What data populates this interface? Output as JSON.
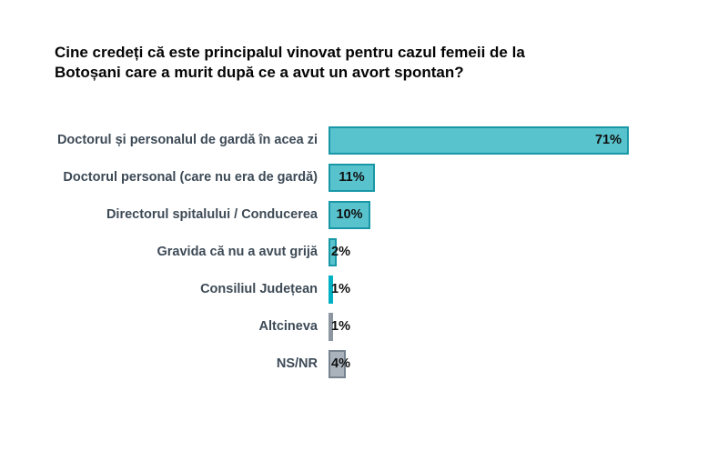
{
  "title": {
    "line1": "Cine credeți că este principalul vinovat pentru cazul femeii de la",
    "line2": "Botoșani care a murit după ce a avut un avort spontan?"
  },
  "colors": {
    "teal_fill": "#58c3cd",
    "teal_border": "#1897a6",
    "cyan_solid": "#00b1c3",
    "gray_solid": "#8d97a2",
    "gray_fill": "#aab3bc",
    "gray_border": "#77838f",
    "category_text": "#3d4a56",
    "value_text": "#101010",
    "title_text": "#050505",
    "background": "#ffffff"
  },
  "chart_data": {
    "type": "bar",
    "orientation": "horizontal",
    "value_unit": "%",
    "title": "Cine credeți că este principalul vinovat pentru cazul femeii de la Botoșani care a murit după ce a avut un avort spontan?",
    "grid": false,
    "legend": false,
    "axis_scale_max": 71,
    "categories": [
      "Doctorul și personalul de gardă în acea zi",
      "Doctorul personal (care nu era de gardă)",
      "Directorul spitalului / Conducerea",
      "Gravida că nu a avut grijă",
      "Consiliul Județean",
      "Altcineva",
      "NS/NR"
    ],
    "values": [
      71,
      11,
      10,
      2,
      1,
      1,
      4
    ],
    "bars": [
      {
        "label": "Doctorul și personalul de gardă în acea zi",
        "value": 71,
        "display": "71%",
        "fill": "#58c3cd",
        "border": "#1897a6",
        "label_pos": "inside-right"
      },
      {
        "label": "Doctorul personal (care nu era de gardă)",
        "value": 11,
        "display": "11%",
        "fill": "#58c3cd",
        "border": "#1897a6",
        "label_pos": "inside-center"
      },
      {
        "label": "Directorul spitalului / Conducerea",
        "value": 10,
        "display": "10%",
        "fill": "#58c3cd",
        "border": "#1897a6",
        "label_pos": "inside-center"
      },
      {
        "label": "Gravida că nu a avut grijă",
        "value": 2,
        "display": "2%",
        "fill": "#58c3cd",
        "border": "#1897a6",
        "label_pos": "overlap-left"
      },
      {
        "label": "Consiliul Județean",
        "value": 1,
        "display": "1%",
        "fill": "#00b1c3",
        "border": "#00b1c3",
        "label_pos": "overlap-left"
      },
      {
        "label": "Altcineva",
        "value": 1,
        "display": "1%",
        "fill": "#8d97a2",
        "border": "#8d97a2",
        "label_pos": "overlap-left"
      },
      {
        "label": "NS/NR",
        "value": 4,
        "display": "4%",
        "fill": "#aab3bc",
        "border": "#77838f",
        "label_pos": "overlap-left"
      }
    ]
  }
}
